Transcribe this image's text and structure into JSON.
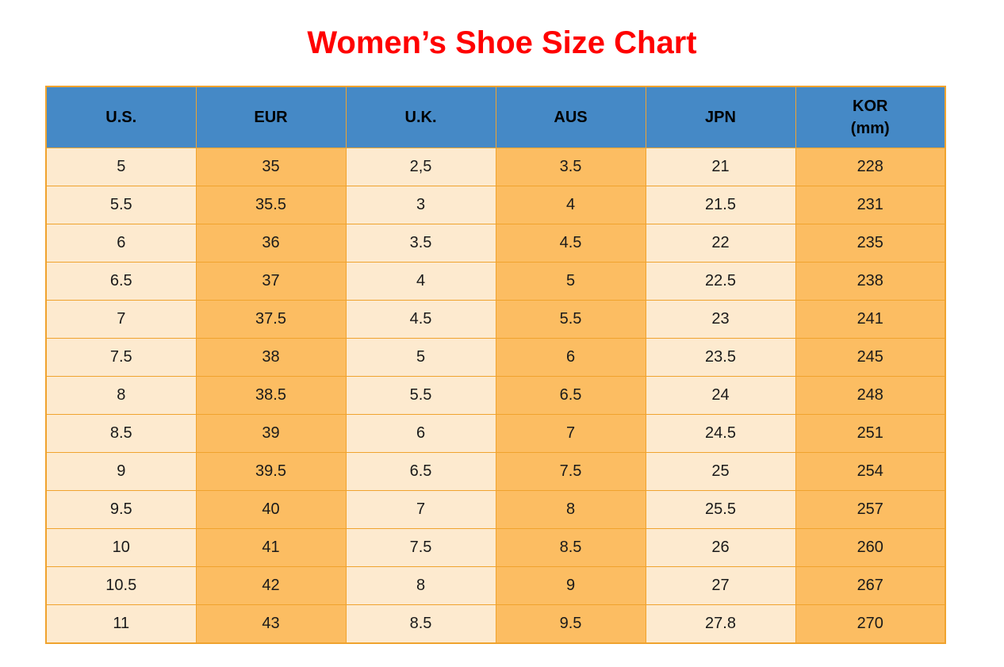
{
  "title": "Women’s Shoe Size Chart",
  "chart_data": {
    "type": "table",
    "title": "Women’s Shoe Size Chart",
    "columns": [
      "U.S.",
      "EUR",
      "U.K.",
      "AUS",
      "JPN",
      "KOR (mm)"
    ],
    "header_lines": [
      [
        "U.S."
      ],
      [
        "EUR"
      ],
      [
        "U.K."
      ],
      [
        "AUS"
      ],
      [
        "JPN"
      ],
      [
        "KOR",
        "(mm)"
      ]
    ],
    "rows": [
      [
        "5",
        "35",
        "2,5",
        "3.5",
        "21",
        "228"
      ],
      [
        "5.5",
        "35.5",
        "3",
        "4",
        "21.5",
        "231"
      ],
      [
        "6",
        "36",
        "3.5",
        "4.5",
        "22",
        "235"
      ],
      [
        "6.5",
        "37",
        "4",
        "5",
        "22.5",
        "238"
      ],
      [
        "7",
        "37.5",
        "4.5",
        "5.5",
        "23",
        "241"
      ],
      [
        "7.5",
        "38",
        "5",
        "6",
        "23.5",
        "245"
      ],
      [
        "8",
        "38.5",
        "5.5",
        "6.5",
        "24",
        "248"
      ],
      [
        "8.5",
        "39",
        "6",
        "7",
        "24.5",
        "251"
      ],
      [
        "9",
        "39.5",
        "6.5",
        "7.5",
        "25",
        "254"
      ],
      [
        "9.5",
        "40",
        "7",
        "8",
        "25.5",
        "257"
      ],
      [
        "10",
        "41",
        "7.5",
        "8.5",
        "26",
        "260"
      ],
      [
        "10.5",
        "42",
        "8",
        "9",
        "27",
        "267"
      ],
      [
        "11",
        "43",
        "8.5",
        "9.5",
        "27.8",
        "270"
      ]
    ],
    "layout": {
      "grid": "full-borders",
      "column_stripe_pattern": [
        "light",
        "dark",
        "light",
        "dark",
        "light",
        "dark"
      ]
    }
  },
  "colors": {
    "title": "#FF0000",
    "header_bg": "#4589C6",
    "col_light": "#FDEACF",
    "col_dark": "#FCBD62",
    "border": "#F0A32E",
    "text": "#1A1A1A"
  }
}
